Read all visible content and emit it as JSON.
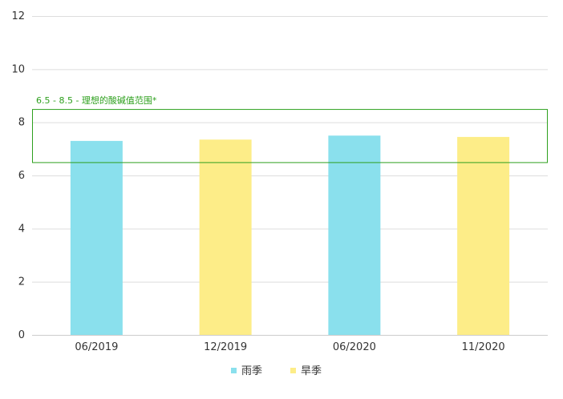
{
  "chart_data": {
    "type": "bar",
    "categories": [
      "06/2019",
      "12/2019",
      "06/2020",
      "11/2020"
    ],
    "values": [
      7.3,
      7.35,
      7.5,
      7.45
    ],
    "bar_series": [
      "雨季",
      "旱季",
      "雨季",
      "旱季"
    ],
    "series": [
      {
        "name": "雨季",
        "color": "#8ae0ed"
      },
      {
        "name": "旱季",
        "color": "#fded88"
      }
    ],
    "ylim": [
      0,
      12
    ],
    "yticks": [
      0,
      2,
      4,
      6,
      8,
      10,
      12
    ],
    "grid": true,
    "legend_position": "bottom-center",
    "band": {
      "low": 6.5,
      "high": 8.5,
      "label": "6.5 - 8.5 - 理想的酸碱值范围*",
      "color": "#2ea01e"
    },
    "title": "",
    "xlabel": "",
    "ylabel": ""
  }
}
